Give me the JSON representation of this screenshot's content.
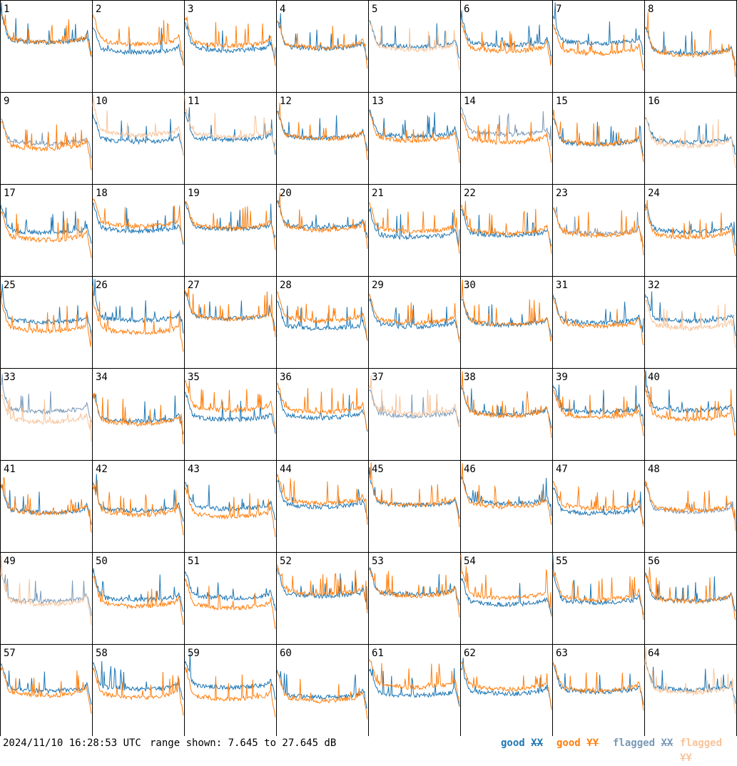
{
  "chart_data": {
    "type": "line",
    "panels": [
      {
        "id": "1",
        "xx": "good",
        "yy": "good"
      },
      {
        "id": "2",
        "xx": "good",
        "yy": "good"
      },
      {
        "id": "3",
        "xx": "good",
        "yy": "good"
      },
      {
        "id": "4",
        "xx": "good",
        "yy": "good"
      },
      {
        "id": "5",
        "xx": "good",
        "yy": "flagged"
      },
      {
        "id": "6",
        "xx": "good",
        "yy": "good"
      },
      {
        "id": "7",
        "xx": "good",
        "yy": "good"
      },
      {
        "id": "8",
        "xx": "good",
        "yy": "good"
      },
      {
        "id": "9",
        "xx": "flagged",
        "yy": "good"
      },
      {
        "id": "10",
        "xx": "good",
        "yy": "flagged"
      },
      {
        "id": "11",
        "xx": "good",
        "yy": "flagged"
      },
      {
        "id": "12",
        "xx": "good",
        "yy": "good"
      },
      {
        "id": "13",
        "xx": "good",
        "yy": "good"
      },
      {
        "id": "14",
        "xx": "flagged",
        "yy": "good"
      },
      {
        "id": "15",
        "xx": "good",
        "yy": "good"
      },
      {
        "id": "16",
        "xx": "good",
        "yy": "flagged"
      },
      {
        "id": "17",
        "xx": "good",
        "yy": "good"
      },
      {
        "id": "18",
        "xx": "good",
        "yy": "good"
      },
      {
        "id": "19",
        "xx": "good",
        "yy": "good"
      },
      {
        "id": "20",
        "xx": "good",
        "yy": "good"
      },
      {
        "id": "21",
        "xx": "good",
        "yy": "good"
      },
      {
        "id": "22",
        "xx": "good",
        "yy": "good"
      },
      {
        "id": "23",
        "xx": "flagged",
        "yy": "good"
      },
      {
        "id": "24",
        "xx": "good",
        "yy": "good"
      },
      {
        "id": "25",
        "xx": "good",
        "yy": "good"
      },
      {
        "id": "26",
        "xx": "good",
        "yy": "good"
      },
      {
        "id": "27",
        "xx": "good",
        "yy": "good"
      },
      {
        "id": "28",
        "xx": "good",
        "yy": "good"
      },
      {
        "id": "29",
        "xx": "good",
        "yy": "good"
      },
      {
        "id": "30",
        "xx": "good",
        "yy": "good"
      },
      {
        "id": "31",
        "xx": "good",
        "yy": "good"
      },
      {
        "id": "32",
        "xx": "good",
        "yy": "flagged"
      },
      {
        "id": "33",
        "xx": "flagged",
        "yy": "flagged"
      },
      {
        "id": "34",
        "xx": "good",
        "yy": "good"
      },
      {
        "id": "35",
        "xx": "good",
        "yy": "good"
      },
      {
        "id": "36",
        "xx": "good",
        "yy": "good"
      },
      {
        "id": "37",
        "xx": "flagged",
        "yy": "flagged"
      },
      {
        "id": "38",
        "xx": "good",
        "yy": "good"
      },
      {
        "id": "39",
        "xx": "good",
        "yy": "good"
      },
      {
        "id": "40",
        "xx": "good",
        "yy": "good"
      },
      {
        "id": "41",
        "xx": "good",
        "yy": "good"
      },
      {
        "id": "42",
        "xx": "good",
        "yy": "good"
      },
      {
        "id": "43",
        "xx": "good",
        "yy": "good"
      },
      {
        "id": "44",
        "xx": "good",
        "yy": "good"
      },
      {
        "id": "45",
        "xx": "good",
        "yy": "good"
      },
      {
        "id": "46",
        "xx": "good",
        "yy": "good"
      },
      {
        "id": "47",
        "xx": "good",
        "yy": "good"
      },
      {
        "id": "48",
        "xx": "flagged",
        "yy": "good"
      },
      {
        "id": "49",
        "xx": "flagged",
        "yy": "flagged"
      },
      {
        "id": "50",
        "xx": "good",
        "yy": "good"
      },
      {
        "id": "51",
        "xx": "good",
        "yy": "good"
      },
      {
        "id": "52",
        "xx": "good",
        "yy": "good"
      },
      {
        "id": "53",
        "xx": "good",
        "yy": "good"
      },
      {
        "id": "54",
        "xx": "good",
        "yy": "good"
      },
      {
        "id": "55",
        "xx": "good",
        "yy": "good"
      },
      {
        "id": "56",
        "xx": "good",
        "yy": "good"
      },
      {
        "id": "57",
        "xx": "good",
        "yy": "good"
      },
      {
        "id": "58",
        "xx": "good",
        "yy": "good"
      },
      {
        "id": "59",
        "xx": "good",
        "yy": "good"
      },
      {
        "id": "60",
        "xx": "good",
        "yy": "good"
      },
      {
        "id": "61",
        "xx": "good",
        "yy": "good"
      },
      {
        "id": "62",
        "xx": "good",
        "yy": "good"
      },
      {
        "id": "63",
        "xx": "good",
        "yy": "good"
      },
      {
        "id": "64",
        "xx": "good",
        "yy": "flagged"
      }
    ],
    "ylim": [
      7.645,
      27.645
    ],
    "legend": [
      {
        "prefix": "good ",
        "pol": "XX",
        "color": "#1f77b4"
      },
      {
        "prefix": "good ",
        "pol": "YY",
        "color": "#ff7f0e"
      },
      {
        "prefix": "flagged ",
        "pol": "XX",
        "color": "#7a9ab8"
      },
      {
        "prefix": "flagged ",
        "pol": "YY",
        "color": "#f8c49a"
      }
    ]
  },
  "footer": {
    "timestamp": "2024/11/10 16:28:53 UTC",
    "range": "range shown: 7.645 to 27.645 dB"
  },
  "colors": {
    "good_xx": "#1f77b4",
    "good_yy": "#ff7f0e",
    "flagged_xx": "#7a9ab8",
    "flagged_yy": "#f8c49a"
  }
}
